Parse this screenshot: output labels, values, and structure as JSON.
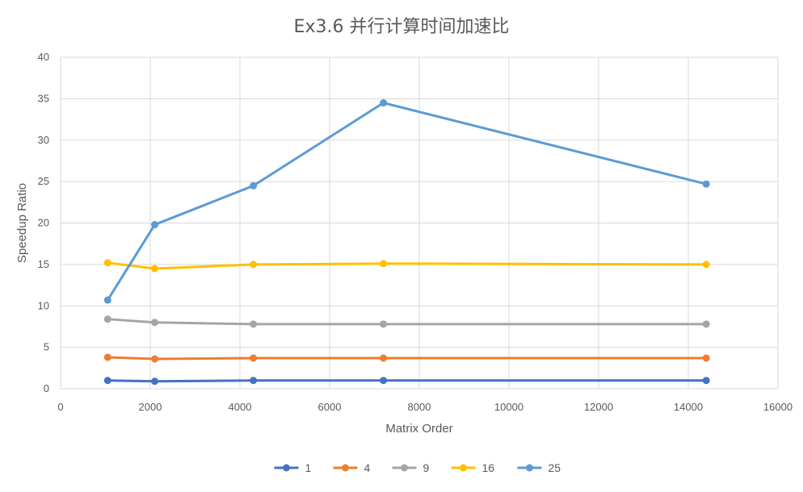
{
  "chart_data": {
    "type": "line",
    "title": "Ex3.6 并行计算时间加速比",
    "xlabel": "Matrix Order",
    "ylabel": "Speedup Ratio",
    "xlim": [
      0,
      16000
    ],
    "ylim": [
      0,
      40
    ],
    "x_ticks": [
      0,
      2000,
      4000,
      6000,
      8000,
      10000,
      12000,
      14000,
      16000
    ],
    "y_ticks": [
      0,
      5,
      10,
      15,
      20,
      25,
      30,
      35,
      40
    ],
    "grid": "vertical and horizontal major gridlines",
    "legend_position": "bottom",
    "x": [
      1050,
      2100,
      4300,
      7200,
      14400
    ],
    "series": [
      {
        "name": "1",
        "color": "#4472C4",
        "values": [
          1.0,
          0.9,
          1.0,
          1.0,
          1.0
        ]
      },
      {
        "name": "4",
        "color": "#ED7D31",
        "values": [
          3.8,
          3.6,
          3.7,
          3.7,
          3.7
        ]
      },
      {
        "name": "9",
        "color": "#A5A5A5",
        "values": [
          8.4,
          8.0,
          7.8,
          7.8,
          7.8
        ]
      },
      {
        "name": "16",
        "color": "#FFC000",
        "values": [
          15.2,
          14.5,
          15.0,
          15.1,
          15.0
        ]
      },
      {
        "name": "25",
        "color": "#5B9BD5",
        "values": [
          10.7,
          19.8,
          24.5,
          34.5,
          24.7
        ]
      }
    ]
  }
}
